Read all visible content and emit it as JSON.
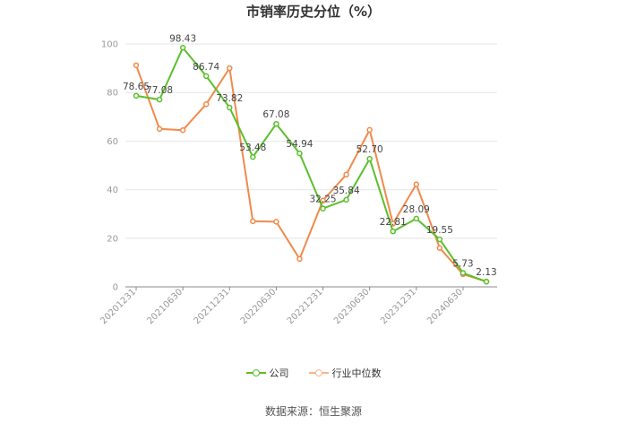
{
  "chart_data": {
    "type": "line",
    "title": "市销率历史分位（%）",
    "xlabel": "",
    "ylabel": "",
    "ylim": [
      0,
      100
    ],
    "yticks": [
      0,
      20,
      40,
      60,
      80,
      100
    ],
    "x": [
      "20201231",
      "20210331",
      "20210630",
      "20210930",
      "20211231",
      "20220331",
      "20220630",
      "20220930",
      "20221231",
      "20230331",
      "20230630",
      "20230930",
      "20231231",
      "20240331",
      "20240630",
      "20240930"
    ],
    "x_tick_labels": [
      "20201231",
      "20210630",
      "20211231",
      "20220630",
      "20221231",
      "20230630",
      "20231231",
      "20240630"
    ],
    "grid": "horizontal",
    "legend_position": "bottom",
    "series": [
      {
        "name": "公司",
        "color": "#5bbf2b",
        "values": [
          78.65,
          77.08,
          98.43,
          86.74,
          73.82,
          53.48,
          67.08,
          54.94,
          32.25,
          35.84,
          52.7,
          22.81,
          28.09,
          19.55,
          5.73,
          2.13
        ],
        "labels": [
          "78.65",
          "77.08",
          "98.43",
          "86.74",
          "73.82",
          "53.48",
          "67.08",
          "54.94",
          "32.25",
          "35.84",
          "52.70",
          "22.81",
          "28.09",
          "19.55",
          "5.73",
          "2.13"
        ]
      },
      {
        "name": "行业中位数",
        "color": "#f08a4b",
        "values": [
          91.2,
          65.0,
          64.5,
          75.2,
          90.0,
          27.0,
          26.8,
          11.5,
          35.5,
          46.2,
          64.6,
          26.0,
          42.2,
          16.0,
          5.2,
          2.2
        ]
      }
    ]
  },
  "source_text": "数据来源：恒生聚源"
}
